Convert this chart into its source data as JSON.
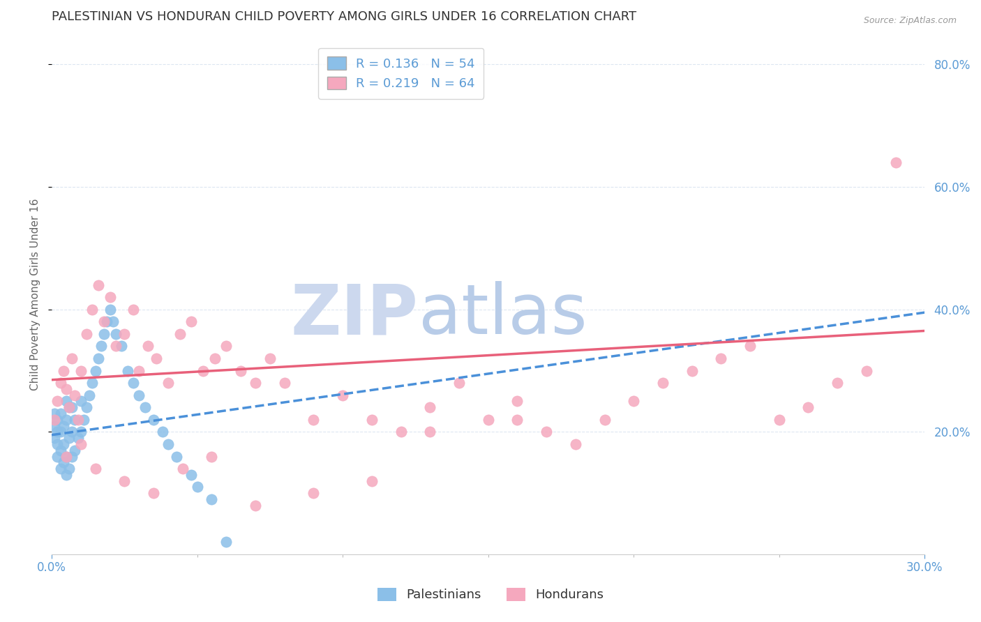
{
  "title": "PALESTINIAN VS HONDURAN CHILD POVERTY AMONG GIRLS UNDER 16 CORRELATION CHART",
  "source": "Source: ZipAtlas.com",
  "ylabel": "Child Poverty Among Girls Under 16",
  "xlim": [
    0.0,
    0.3
  ],
  "ylim": [
    0.0,
    0.85
  ],
  "right_yticks": [
    0.2,
    0.4,
    0.6,
    0.8
  ],
  "r_palestinian": 0.136,
  "n_palestinian": 54,
  "r_honduran": 0.219,
  "n_honduran": 64,
  "palestinian_color": "#8bbfe8",
  "honduran_color": "#f5a8be",
  "trend_palestinian_color": "#4a90d9",
  "trend_honduran_color": "#e8607a",
  "axis_color": "#5b9bd5",
  "grid_color": "#dce6f1",
  "background_color": "#ffffff",
  "watermark_zip": "ZIP",
  "watermark_atlas": "atlas",
  "watermark_color_zip": "#ccd8ee",
  "watermark_color_atlas": "#b8cce8",
  "title_fontsize": 13,
  "legend_fontsize": 13,
  "axis_label_fontsize": 11,
  "tick_fontsize": 12,
  "palestinian_x": [
    0.001,
    0.001,
    0.001,
    0.002,
    0.002,
    0.002,
    0.002,
    0.003,
    0.003,
    0.003,
    0.003,
    0.004,
    0.004,
    0.004,
    0.005,
    0.005,
    0.005,
    0.005,
    0.006,
    0.006,
    0.006,
    0.007,
    0.007,
    0.007,
    0.008,
    0.008,
    0.009,
    0.01,
    0.01,
    0.011,
    0.012,
    0.013,
    0.014,
    0.015,
    0.016,
    0.017,
    0.018,
    0.019,
    0.02,
    0.021,
    0.022,
    0.024,
    0.026,
    0.028,
    0.03,
    0.032,
    0.035,
    0.038,
    0.04,
    0.043,
    0.048,
    0.05,
    0.055,
    0.06
  ],
  "palestinian_y": [
    0.19,
    0.21,
    0.23,
    0.16,
    0.18,
    0.2,
    0.22,
    0.14,
    0.17,
    0.2,
    0.23,
    0.15,
    0.18,
    0.21,
    0.13,
    0.16,
    0.22,
    0.25,
    0.14,
    0.19,
    0.24,
    0.16,
    0.2,
    0.24,
    0.17,
    0.22,
    0.19,
    0.2,
    0.25,
    0.22,
    0.24,
    0.26,
    0.28,
    0.3,
    0.32,
    0.34,
    0.36,
    0.38,
    0.4,
    0.38,
    0.36,
    0.34,
    0.3,
    0.28,
    0.26,
    0.24,
    0.22,
    0.2,
    0.18,
    0.16,
    0.13,
    0.11,
    0.09,
    0.02
  ],
  "honduran_x": [
    0.001,
    0.002,
    0.003,
    0.004,
    0.005,
    0.006,
    0.007,
    0.008,
    0.009,
    0.01,
    0.012,
    0.014,
    0.016,
    0.018,
    0.02,
    0.022,
    0.025,
    0.028,
    0.03,
    0.033,
    0.036,
    0.04,
    0.044,
    0.048,
    0.052,
    0.056,
    0.06,
    0.065,
    0.07,
    0.075,
    0.08,
    0.09,
    0.1,
    0.11,
    0.12,
    0.13,
    0.14,
    0.15,
    0.16,
    0.17,
    0.18,
    0.19,
    0.2,
    0.21,
    0.22,
    0.23,
    0.24,
    0.25,
    0.26,
    0.27,
    0.28,
    0.005,
    0.01,
    0.015,
    0.025,
    0.035,
    0.045,
    0.055,
    0.07,
    0.09,
    0.11,
    0.13,
    0.16,
    0.29
  ],
  "honduran_y": [
    0.22,
    0.25,
    0.28,
    0.3,
    0.27,
    0.24,
    0.32,
    0.26,
    0.22,
    0.3,
    0.36,
    0.4,
    0.44,
    0.38,
    0.42,
    0.34,
    0.36,
    0.4,
    0.3,
    0.34,
    0.32,
    0.28,
    0.36,
    0.38,
    0.3,
    0.32,
    0.34,
    0.3,
    0.28,
    0.32,
    0.28,
    0.22,
    0.26,
    0.22,
    0.2,
    0.24,
    0.28,
    0.22,
    0.25,
    0.2,
    0.18,
    0.22,
    0.25,
    0.28,
    0.3,
    0.32,
    0.34,
    0.22,
    0.24,
    0.28,
    0.3,
    0.16,
    0.18,
    0.14,
    0.12,
    0.1,
    0.14,
    0.16,
    0.08,
    0.1,
    0.12,
    0.2,
    0.22,
    0.64
  ],
  "trend_pal_x0": 0.0,
  "trend_pal_y0": 0.195,
  "trend_pal_x1": 0.3,
  "trend_pal_y1": 0.395,
  "trend_hon_x0": 0.0,
  "trend_hon_y0": 0.285,
  "trend_hon_x1": 0.3,
  "trend_hon_y1": 0.365
}
